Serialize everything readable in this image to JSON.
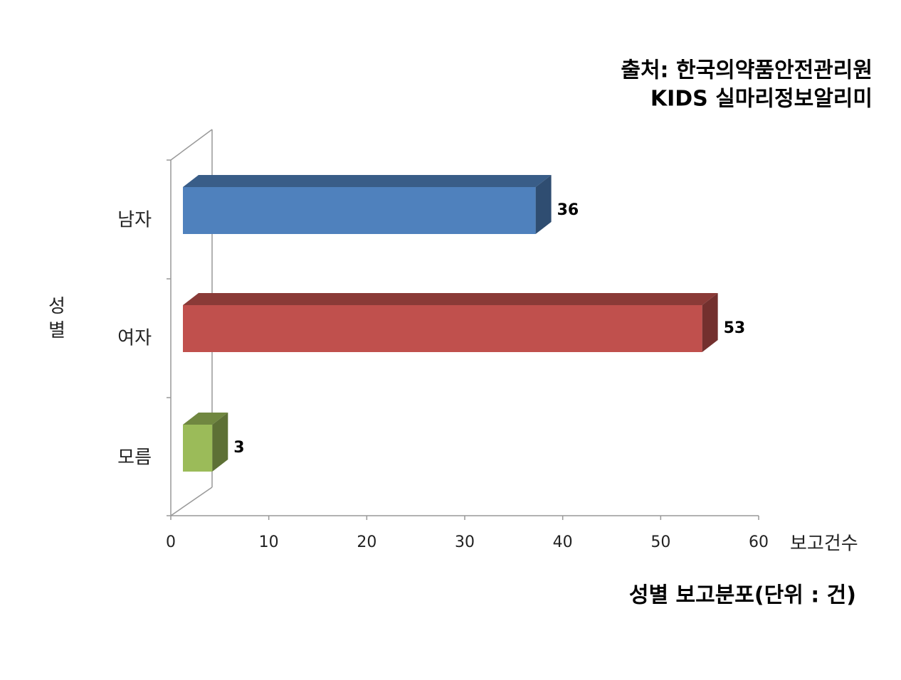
{
  "chart_data": {
    "type": "bar",
    "orientation": "horizontal",
    "source": "출처: 한국의약품안전관리원",
    "source_line2": "KIDS 실마리정보알리미",
    "caption": "성별 보고분포(단위 : 건)",
    "x_label": "보고건수",
    "y_label": "성별",
    "categories": [
      "남자",
      "여자",
      "모름"
    ],
    "values": [
      36,
      53,
      3
    ],
    "colors": [
      "#4f81bd",
      "#c0504d",
      "#9bbb59"
    ],
    "xlim": [
      0,
      60
    ],
    "xticks": [
      0,
      10,
      20,
      30,
      40,
      50,
      60
    ]
  }
}
